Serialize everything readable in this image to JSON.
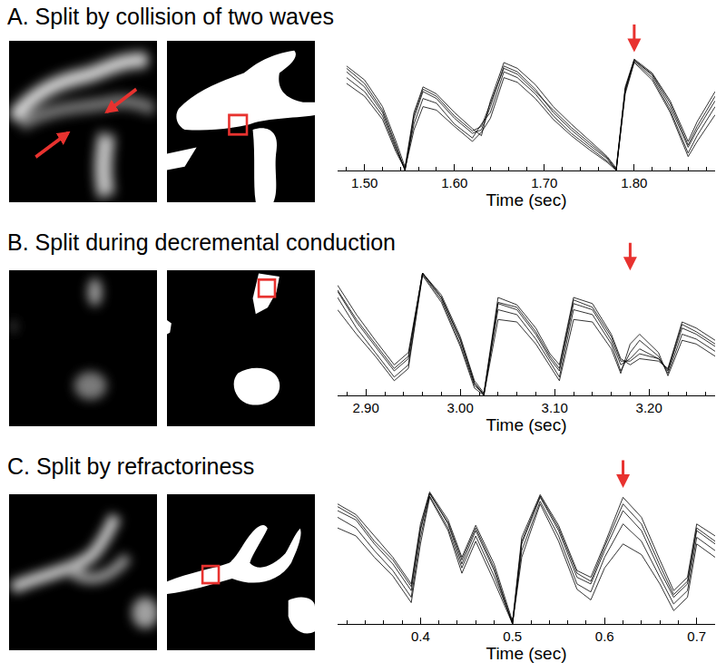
{
  "chart_data": [
    {
      "type": "line",
      "title": "A. Split by collision of two waves",
      "x_label": "Time (sec)",
      "tick_labels": "x",
      "xlim": [
        1.47,
        1.89
      ],
      "ylim": [
        0,
        1
      ],
      "xticks": [
        {
          "value": 1.5,
          "label": "1.50"
        },
        {
          "value": 1.6,
          "label": "1.60"
        },
        {
          "value": 1.7,
          "label": "1.70"
        },
        {
          "value": 1.8,
          "label": "1.80"
        }
      ],
      "arrow_x": 1.8,
      "color": "#000000",
      "x": [
        1.48,
        1.5,
        1.52,
        1.535,
        1.545,
        1.555,
        1.565,
        1.58,
        1.6,
        1.62,
        1.63,
        1.64,
        1.655,
        1.67,
        1.69,
        1.71,
        1.73,
        1.75,
        1.77,
        1.78,
        1.79,
        1.8,
        1.82,
        1.84,
        1.86,
        1.87,
        1.89
      ],
      "series": [
        {
          "values": [
            0.85,
            0.72,
            0.5,
            0.2,
            0.0,
            0.45,
            0.68,
            0.62,
            0.45,
            0.32,
            0.35,
            0.55,
            0.9,
            0.85,
            0.7,
            0.5,
            0.35,
            0.22,
            0.1,
            0.0,
            0.7,
            0.95,
            0.82,
            0.55,
            0.2,
            0.35,
            0.6
          ]
        },
        {
          "values": [
            0.8,
            0.68,
            0.47,
            0.18,
            0.02,
            0.4,
            0.62,
            0.58,
            0.4,
            0.28,
            0.4,
            0.5,
            0.85,
            0.8,
            0.66,
            0.47,
            0.32,
            0.2,
            0.08,
            0.01,
            0.68,
            0.94,
            0.8,
            0.52,
            0.15,
            0.3,
            0.55
          ]
        },
        {
          "values": [
            0.9,
            0.78,
            0.55,
            0.25,
            0.03,
            0.5,
            0.72,
            0.66,
            0.5,
            0.36,
            0.3,
            0.6,
            0.93,
            0.88,
            0.74,
            0.55,
            0.4,
            0.26,
            0.12,
            0.02,
            0.72,
            0.96,
            0.84,
            0.6,
            0.25,
            0.42,
            0.68
          ]
        },
        {
          "values": [
            0.75,
            0.64,
            0.44,
            0.16,
            0.01,
            0.35,
            0.55,
            0.52,
            0.38,
            0.25,
            0.33,
            0.45,
            0.8,
            0.76,
            0.62,
            0.44,
            0.3,
            0.18,
            0.07,
            0.0,
            0.66,
            0.93,
            0.78,
            0.5,
            0.12,
            0.25,
            0.48
          ]
        },
        {
          "values": [
            0.88,
            0.75,
            0.52,
            0.22,
            0.0,
            0.48,
            0.7,
            0.64,
            0.47,
            0.34,
            0.38,
            0.58,
            0.88,
            0.83,
            0.68,
            0.52,
            0.37,
            0.24,
            0.11,
            0.01,
            0.7,
            0.95,
            0.83,
            0.58,
            0.22,
            0.38,
            0.64
          ]
        }
      ]
    },
    {
      "type": "line",
      "title": "B. Split during decremental conduction",
      "x_label": "Time (sec)",
      "tick_labels": "x",
      "xlim": [
        2.87,
        3.27
      ],
      "ylim": [
        0,
        1
      ],
      "xticks": [
        {
          "value": 2.9,
          "label": "2.90"
        },
        {
          "value": 3.0,
          "label": "3.00"
        },
        {
          "value": 3.1,
          "label": "3.10"
        },
        {
          "value": 3.2,
          "label": "3.20"
        }
      ],
      "arrow_x": 3.18,
      "color": "#000000",
      "x": [
        2.87,
        2.89,
        2.91,
        2.93,
        2.945,
        2.96,
        2.98,
        3.0,
        3.015,
        3.025,
        3.04,
        3.06,
        3.08,
        3.095,
        3.105,
        3.12,
        3.14,
        3.16,
        3.17,
        3.18,
        3.19,
        3.21,
        3.22,
        3.235,
        3.25,
        3.27
      ],
      "series": [
        {
          "values": [
            0.85,
            0.6,
            0.4,
            0.2,
            0.3,
            1.0,
            0.8,
            0.45,
            0.1,
            0.0,
            0.75,
            0.7,
            0.5,
            0.3,
            0.2,
            0.75,
            0.7,
            0.45,
            0.25,
            0.3,
            0.38,
            0.3,
            0.2,
            0.55,
            0.5,
            0.4
          ]
        },
        {
          "values": [
            0.8,
            0.55,
            0.35,
            0.15,
            0.25,
            0.99,
            0.78,
            0.42,
            0.08,
            0.01,
            0.7,
            0.66,
            0.46,
            0.27,
            0.15,
            0.7,
            0.66,
            0.42,
            0.2,
            0.35,
            0.45,
            0.32,
            0.18,
            0.5,
            0.46,
            0.36
          ]
        },
        {
          "values": [
            0.9,
            0.66,
            0.45,
            0.25,
            0.35,
            1.0,
            0.82,
            0.48,
            0.12,
            0.02,
            0.8,
            0.74,
            0.55,
            0.34,
            0.25,
            0.8,
            0.75,
            0.5,
            0.3,
            0.25,
            0.3,
            0.28,
            0.22,
            0.6,
            0.55,
            0.45
          ]
        },
        {
          "values": [
            0.7,
            0.5,
            0.32,
            0.12,
            0.22,
            0.98,
            0.76,
            0.4,
            0.06,
            0.0,
            0.62,
            0.6,
            0.42,
            0.24,
            0.12,
            0.62,
            0.6,
            0.38,
            0.18,
            0.42,
            0.5,
            0.35,
            0.16,
            0.45,
            0.42,
            0.32
          ]
        },
        {
          "values": [
            0.86,
            0.62,
            0.42,
            0.22,
            0.32,
            1.0,
            0.8,
            0.46,
            0.1,
            0.01,
            0.76,
            0.72,
            0.52,
            0.32,
            0.22,
            0.78,
            0.72,
            0.48,
            0.28,
            0.28,
            0.34,
            0.3,
            0.21,
            0.58,
            0.52,
            0.42
          ]
        }
      ]
    },
    {
      "type": "line",
      "title": "C. Split by refractoriness",
      "x_label": "Time (sec)",
      "tick_labels": "x",
      "xlim": [
        0.31,
        0.72
      ],
      "ylim": [
        0,
        1
      ],
      "xticks": [
        0.4,
        0.5,
        0.6,
        0.7
      ],
      "arrow_x": 0.62,
      "color": "#000000",
      "x": [
        0.31,
        0.33,
        0.35,
        0.37,
        0.39,
        0.4,
        0.41,
        0.43,
        0.445,
        0.46,
        0.48,
        0.5,
        0.51,
        0.53,
        0.55,
        0.57,
        0.585,
        0.6,
        0.62,
        0.64,
        0.66,
        0.675,
        0.69,
        0.7,
        0.72
      ],
      "series": [
        {
          "values": [
            0.85,
            0.78,
            0.6,
            0.45,
            0.25,
            0.7,
            0.98,
            0.75,
            0.45,
            0.7,
            0.4,
            0.0,
            0.6,
            0.95,
            0.7,
            0.35,
            0.3,
            0.55,
            0.85,
            0.7,
            0.4,
            0.2,
            0.3,
            0.7,
            0.6
          ]
        },
        {
          "values": [
            0.8,
            0.72,
            0.55,
            0.4,
            0.2,
            0.65,
            0.96,
            0.72,
            0.42,
            0.66,
            0.36,
            0.01,
            0.55,
            0.92,
            0.66,
            0.3,
            0.24,
            0.5,
            0.75,
            0.62,
            0.35,
            0.15,
            0.25,
            0.65,
            0.55
          ]
        },
        {
          "values": [
            0.9,
            0.82,
            0.66,
            0.5,
            0.3,
            0.75,
            0.99,
            0.78,
            0.5,
            0.74,
            0.45,
            0.02,
            0.65,
            0.97,
            0.74,
            0.4,
            0.35,
            0.6,
            0.95,
            0.8,
            0.48,
            0.25,
            0.35,
            0.75,
            0.66
          ]
        },
        {
          "values": [
            0.72,
            0.66,
            0.5,
            0.36,
            0.16,
            0.6,
            0.95,
            0.7,
            0.38,
            0.62,
            0.32,
            0.0,
            0.5,
            0.9,
            0.62,
            0.26,
            0.18,
            0.42,
            0.6,
            0.52,
            0.3,
            0.1,
            0.2,
            0.6,
            0.5
          ]
        },
        {
          "values": [
            0.88,
            0.8,
            0.62,
            0.48,
            0.28,
            0.72,
            0.98,
            0.76,
            0.48,
            0.72,
            0.42,
            0.0,
            0.62,
            0.96,
            0.72,
            0.38,
            0.32,
            0.58,
            0.9,
            0.75,
            0.44,
            0.22,
            0.32,
            0.72,
            0.62
          ]
        }
      ]
    }
  ]
}
